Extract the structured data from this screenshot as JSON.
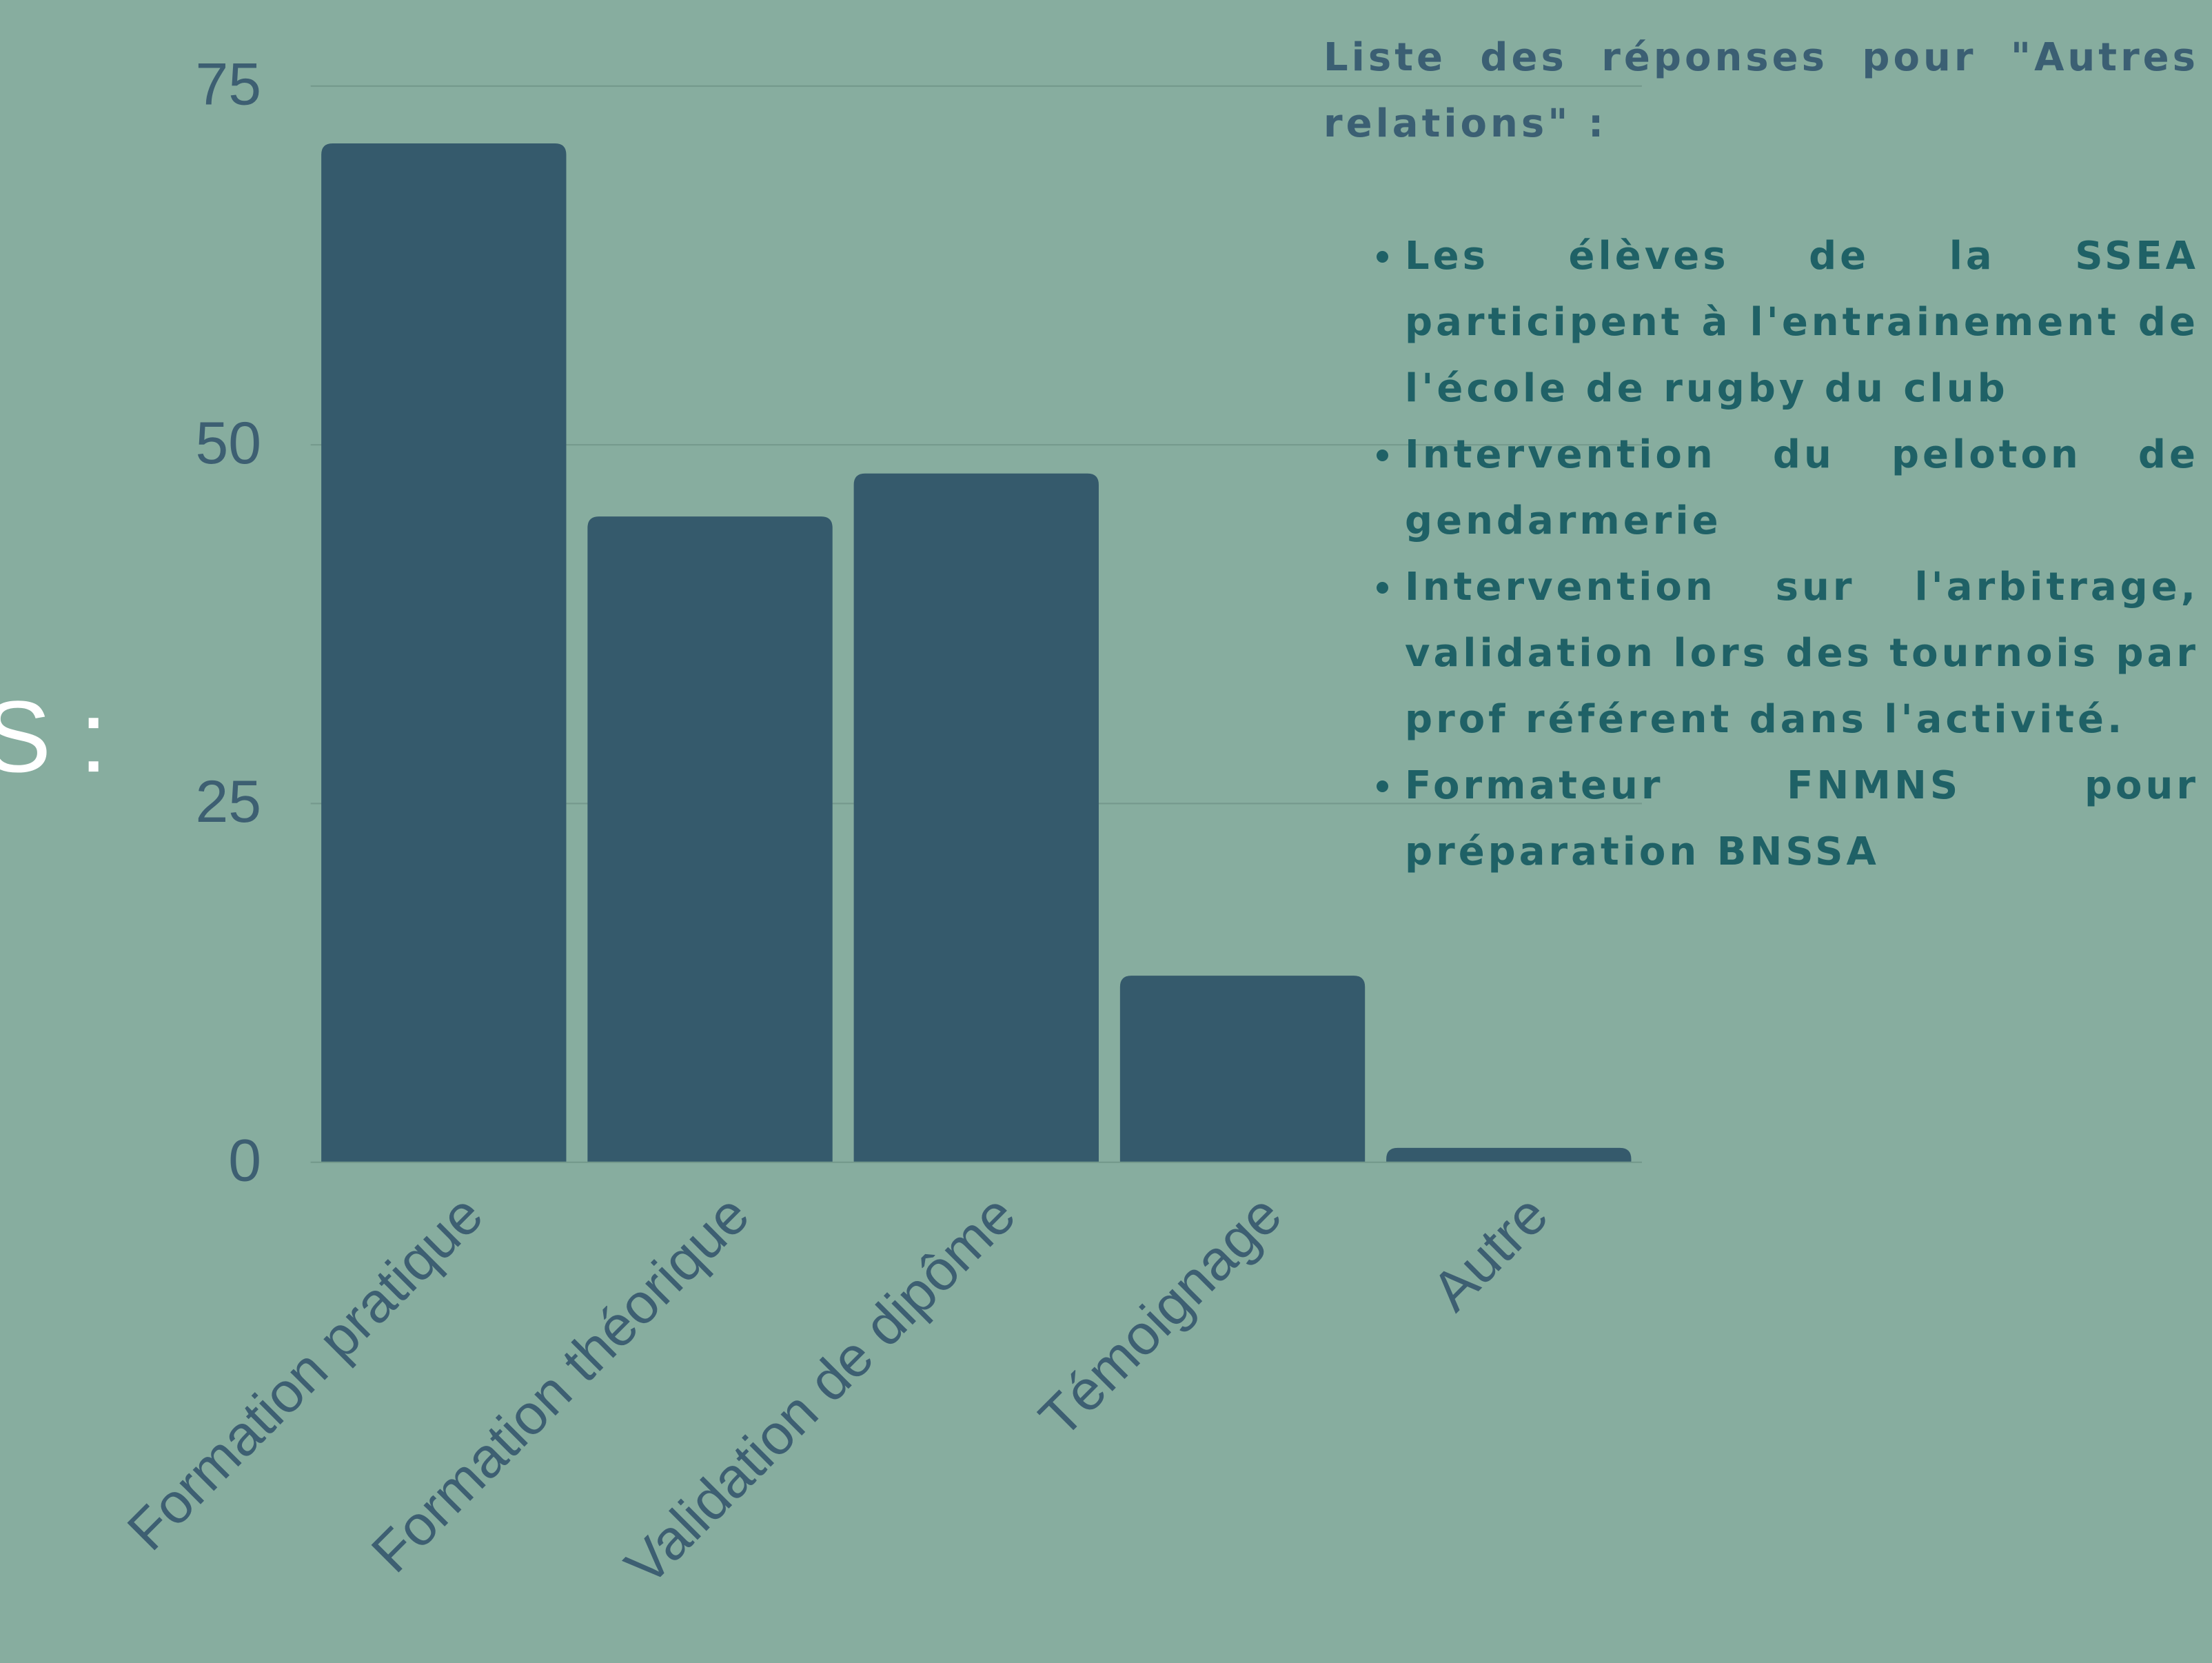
{
  "fragment": "S :",
  "chart_data": {
    "type": "bar",
    "categories": [
      "Formation pratique",
      "Formation théorique",
      "Validation de dipôme",
      "Témoignage",
      "Autre"
    ],
    "values": [
      71,
      45,
      48,
      13,
      1
    ],
    "color": "#355a6c",
    "ylim": [
      0,
      75
    ],
    "yticks": [
      0,
      25,
      50,
      75
    ],
    "grid": true
  },
  "side_text": {
    "heading": "Liste des réponses pour \"Autres relations\" :",
    "items": [
      "Les élèves de la SSEA participent à l'entrainement de l'école de rugby du club",
      "Intervention du peloton de gendarmerie",
      "Intervention sur l'arbitrage, validation lors des tournois par prof référent dans l'activité.",
      "Formateur FNMNS pour préparation BNSSA"
    ]
  }
}
